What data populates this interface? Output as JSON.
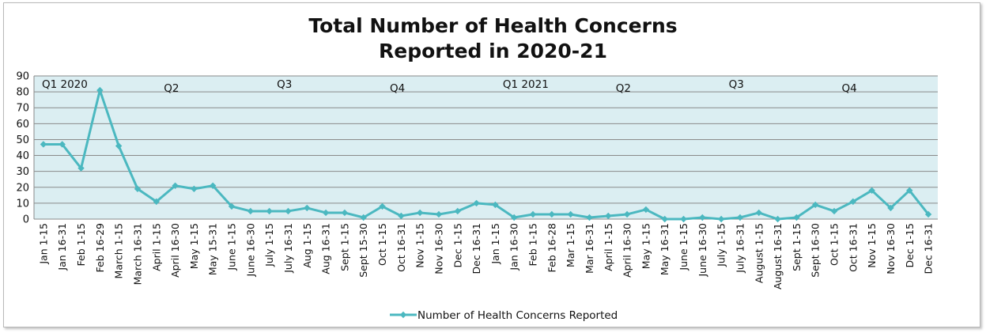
{
  "chart_data": {
    "type": "line",
    "title_lines": [
      "Total Number of Health Concerns",
      "Reported in 2020-21"
    ],
    "xlabel": "",
    "ylabel": "",
    "ylim": [
      0,
      90
    ],
    "yticks": [
      0,
      10,
      20,
      30,
      40,
      50,
      60,
      70,
      80,
      90
    ],
    "grid": true,
    "legend_position": "bottom",
    "categories": [
      "Jan 1-15",
      "Jan 16-31",
      "Feb 1-15",
      "Feb 16-29",
      "March 1-15",
      "March 16-31",
      "April 1-15",
      "April 16-30",
      "May 1-15",
      "May 15-31",
      "June 1-15",
      "June 16-30",
      "July 1-15",
      "July 16-31",
      "Aug 1-15",
      "Aug 16-31",
      "Sept 1-15",
      "Sept 15-30",
      "Oct 1-15",
      "Oct 16-31",
      "Nov 1-15",
      "Nov 16-30",
      "Dec 1-15",
      "Dec 16-31",
      "Jan 1-15",
      "Jan 16-30",
      "Feb 1-15",
      "Feb 16-28",
      "Mar 1-15",
      "Mar 16-31",
      "April 1-15",
      "April 16-30",
      "May 1-15",
      "May 16-31",
      "June 1-15",
      "June 16-30",
      "July 1-15",
      "July 16-31",
      "August 1-15",
      "August 16-31",
      "Sept 1-15",
      "Sept 16-30",
      "Oct 1-15",
      "Oct 16-31",
      "Nov 1-15",
      "Nov 16-30",
      "Dec 1-15",
      "Dec 16-31"
    ],
    "series": [
      {
        "name": "Number of Health Concerns Reported",
        "color": "#4bb8c0",
        "values": [
          47,
          47,
          32,
          81,
          46,
          19,
          11,
          21,
          19,
          21,
          8,
          5,
          5,
          5,
          7,
          4,
          4,
          1,
          8,
          2,
          4,
          3,
          5,
          10,
          9,
          1,
          3,
          3,
          3,
          1,
          2,
          3,
          6,
          0,
          0,
          1,
          0,
          1,
          4,
          0,
          1,
          9,
          5,
          11,
          18,
          7,
          18,
          3
        ]
      }
    ],
    "period_annotations": [
      {
        "label": "Q1 2020",
        "category_index": 0
      },
      {
        "label": "Q2",
        "category_index": 6
      },
      {
        "label": "Q3",
        "category_index": 12
      },
      {
        "label": "Q4",
        "category_index": 18
      },
      {
        "label": "Q1 2021",
        "category_index": 24
      },
      {
        "label": "Q2",
        "category_index": 30
      },
      {
        "label": "Q3",
        "category_index": 36
      },
      {
        "label": "Q4",
        "category_index": 42
      }
    ],
    "colors": {
      "plot_background": "#dbeef2",
      "gridline": "#8a8a8a",
      "series": "#4bb8c0"
    }
  }
}
